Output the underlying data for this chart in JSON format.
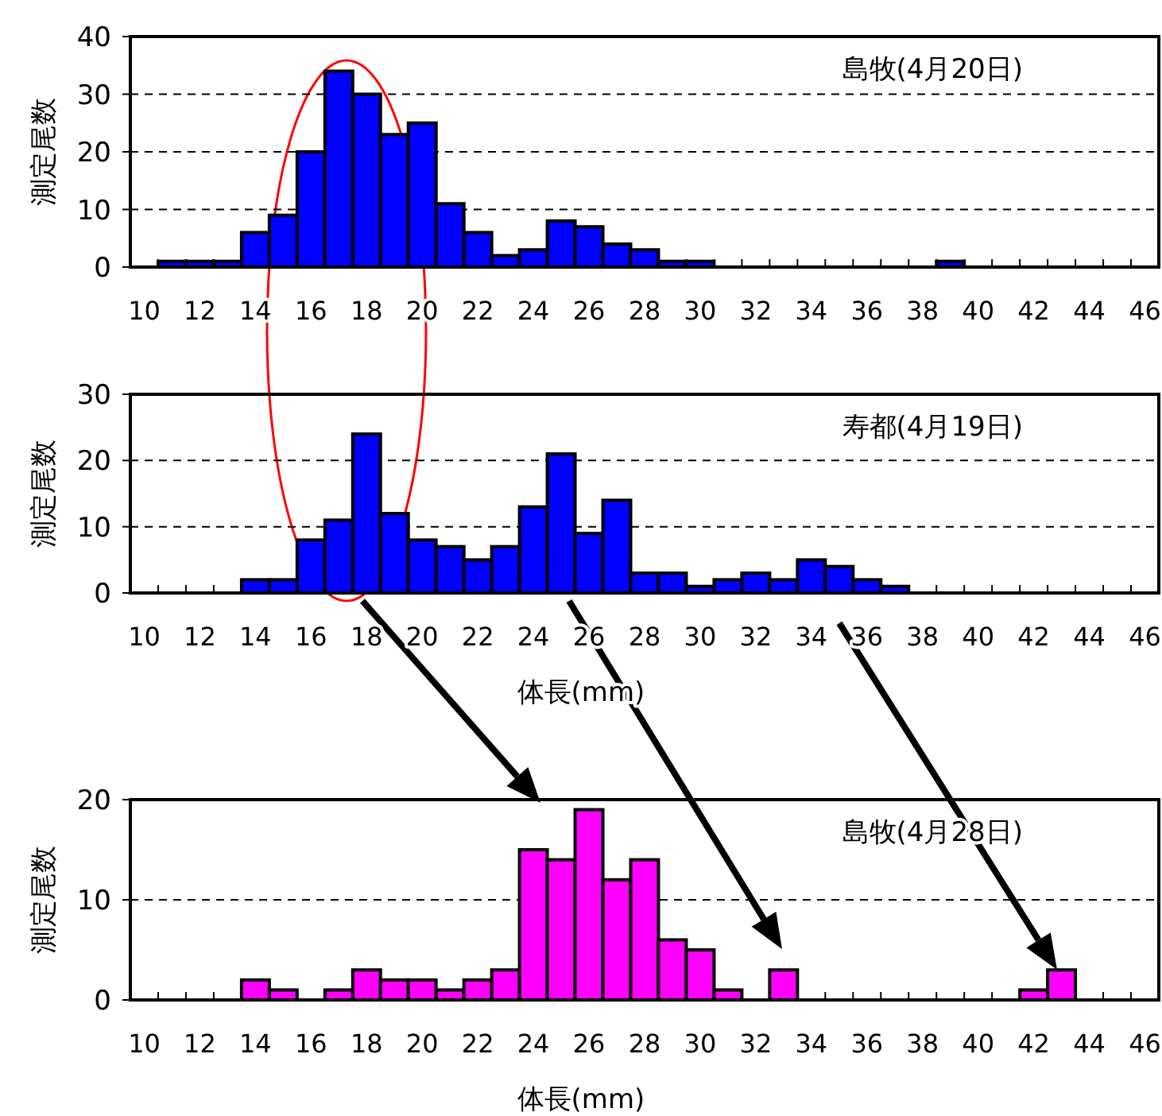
{
  "chart_data": [
    {
      "type": "bar",
      "ylabel": "測定尾数",
      "annotations": [
        "島牧(4月20日)"
      ],
      "color": "#0000ff",
      "grid": "y",
      "ylim": [
        0,
        40
      ],
      "yticks": [
        0,
        10,
        20,
        30,
        40
      ],
      "categories": [
        "10",
        null,
        "12",
        null,
        "14",
        null,
        "16",
        null,
        "18",
        null,
        "20",
        null,
        "22",
        null,
        "24",
        null,
        "26",
        null,
        "28",
        null,
        "30",
        null,
        "32",
        null,
        "34",
        null,
        "36",
        null,
        "38",
        null,
        "40",
        null,
        "42",
        null,
        "44",
        null,
        "46"
      ],
      "values": [
        0,
        1,
        1,
        1,
        6,
        9,
        20,
        34,
        30,
        23,
        25,
        11,
        6,
        2,
        3,
        8,
        7,
        4,
        3,
        1,
        1,
        0,
        0,
        0,
        0,
        0,
        0,
        0,
        0,
        1,
        0,
        0,
        0,
        0,
        0,
        0,
        0
      ]
    },
    {
      "type": "bar",
      "ylabel": "測定尾数",
      "xlabel": "体長(mm)",
      "annotations": [
        "寿都(4月19日)"
      ],
      "color": "#0000ff",
      "grid": "y",
      "ylim": [
        0,
        30
      ],
      "yticks": [
        0,
        10,
        20,
        30
      ],
      "categories": [
        "10",
        null,
        "12",
        null,
        "14",
        null,
        "16",
        null,
        "18",
        null,
        "20",
        null,
        "22",
        null,
        "24",
        null,
        "26",
        null,
        "28",
        null,
        "30",
        null,
        "32",
        null,
        "34",
        null,
        "36",
        null,
        "38",
        null,
        "40",
        null,
        "42",
        null,
        "44",
        null,
        "46"
      ],
      "values": [
        0,
        0,
        0,
        0,
        2,
        2,
        8,
        11,
        24,
        12,
        8,
        7,
        5,
        7,
        13,
        21,
        9,
        14,
        3,
        3,
        1,
        2,
        3,
        2,
        5,
        4,
        2,
        1,
        0,
        0,
        0,
        0,
        0,
        0,
        0,
        0,
        0
      ]
    },
    {
      "type": "bar",
      "ylabel": "測定尾数",
      "xlabel": "体長(mm)",
      "annotations": [
        "島牧(4月28日)"
      ],
      "color": "#ff00ff",
      "grid": "y",
      "ylim": [
        0,
        20
      ],
      "yticks": [
        0,
        10,
        20
      ],
      "categories": [
        "10",
        null,
        "12",
        null,
        "14",
        null,
        "16",
        null,
        "18",
        null,
        "20",
        null,
        "22",
        null,
        "24",
        null,
        "26",
        null,
        "28",
        null,
        "30",
        null,
        "32",
        null,
        "34",
        null,
        "36",
        null,
        "38",
        null,
        "40",
        null,
        "42",
        null,
        "44",
        null,
        "46"
      ],
      "values": [
        0,
        0,
        0,
        0,
        2,
        1,
        0,
        1,
        3,
        2,
        2,
        1,
        2,
        3,
        15,
        14,
        19,
        12,
        14,
        6,
        5,
        1,
        0,
        3,
        0,
        0,
        0,
        0,
        0,
        0,
        0,
        0,
        1,
        3,
        0,
        0,
        0
      ]
    }
  ]
}
